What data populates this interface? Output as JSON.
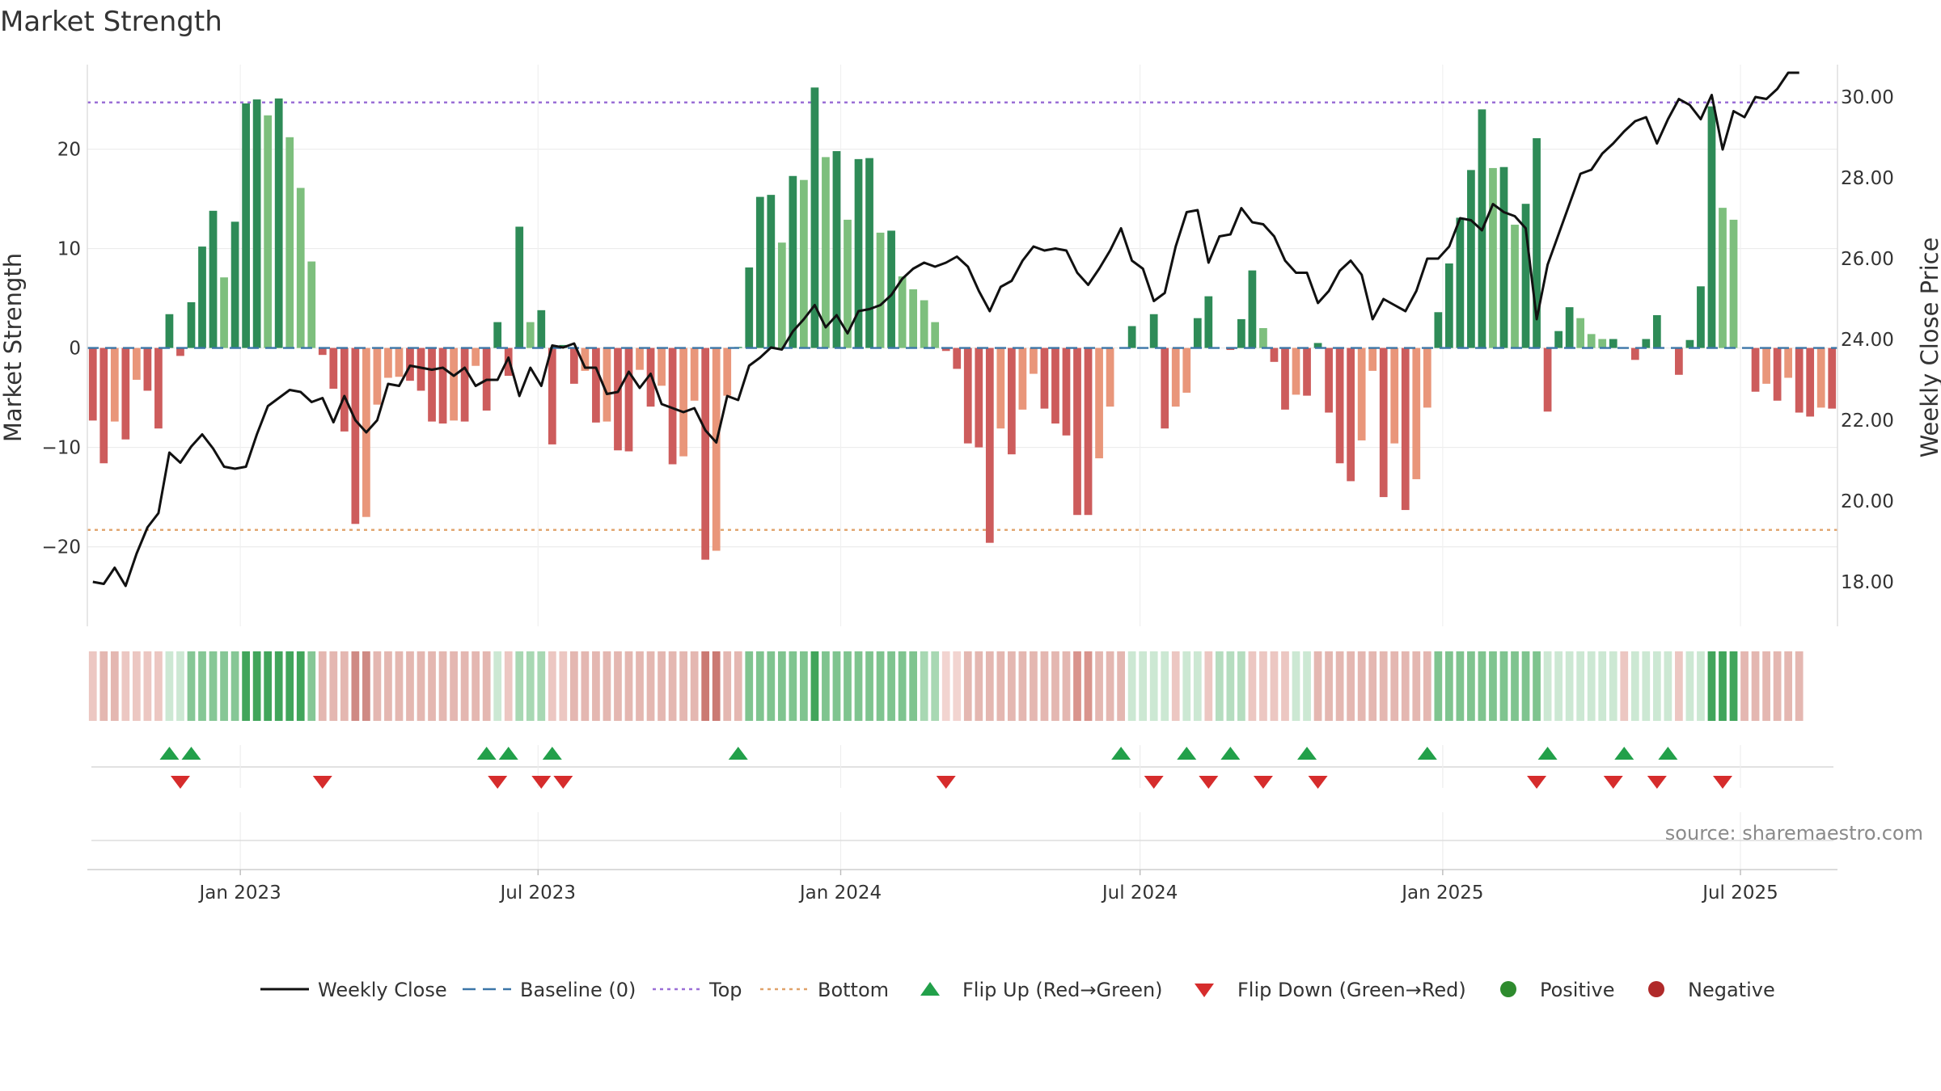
{
  "chart_data": {
    "type": "bar",
    "title": "Market Strength",
    "ylabel": "Market Strength",
    "y2label": "Weekly Close Price",
    "ylim": [
      -28,
      28.5
    ],
    "y2lim": [
      16.9,
      30.8
    ],
    "yticks": [
      "20",
      "10",
      "0",
      "−10",
      "−20"
    ],
    "yticks_values": [
      20,
      10,
      0,
      -10,
      -20
    ],
    "y2ticks": [
      "30.00",
      "28.00",
      "26.00",
      "24.00",
      "22.00",
      "20.00",
      "18.00"
    ],
    "y2ticks_values": [
      30,
      28,
      26,
      24,
      22,
      20,
      18
    ],
    "x_start": "2022-09-30",
    "x_end": "2025-08-29",
    "x_ticks": [
      {
        "date": "2023-01-01",
        "label": "Jan 2023"
      },
      {
        "date": "2023-07-01",
        "label": "Jul 2023"
      },
      {
        "date": "2024-01-01",
        "label": "Jan 2024"
      },
      {
        "date": "2024-07-01",
        "label": "Jul 2024"
      },
      {
        "date": "2025-01-01",
        "label": "Jan 2025"
      },
      {
        "date": "2025-07-01",
        "label": "Jul 2025"
      }
    ],
    "top_line": 24.7,
    "bottom_line": -18.3,
    "strength": [
      -7.3,
      -11.6,
      -7.4,
      -9.2,
      -3.2,
      -4.3,
      -8.1,
      3.4,
      -0.8,
      4.6,
      10.2,
      13.8,
      7.1,
      12.7,
      24.6,
      25.0,
      23.4,
      25.1,
      21.2,
      16.1,
      8.7,
      -0.7,
      -4.1,
      -8.4,
      -17.7,
      -17.0,
      -5.7,
      -3.0,
      -2.9,
      -3.3,
      -4.3,
      -7.4,
      -7.6,
      -7.3,
      -7.4,
      -1.8,
      -6.3,
      2.6,
      -2.8,
      12.2,
      2.6,
      3.8,
      -9.7,
      0.3,
      -3.6,
      -2.3,
      -7.5,
      -7.4,
      -10.3,
      -10.4,
      -2.2,
      -5.9,
      -3.8,
      -11.7,
      -10.9,
      -5.3,
      -21.3,
      -20.4,
      -4.8,
      0.1,
      8.1,
      15.2,
      15.4,
      10.6,
      17.3,
      16.9,
      26.2,
      19.2,
      19.8,
      12.9,
      19.0,
      19.1,
      11.6,
      11.8,
      7.2,
      5.9,
      4.8,
      2.6,
      -0.3,
      -2.1,
      -9.6,
      -10.0,
      -19.6,
      -8.1,
      -10.7,
      -6.2,
      -2.6,
      -6.1,
      -7.6,
      -8.8,
      -16.8,
      -16.8,
      -11.1,
      -5.9,
      0.0,
      2.2,
      0.0,
      3.4,
      -8.1,
      -5.9,
      -4.5,
      3.0,
      5.2,
      0.0,
      -0.2,
      2.9,
      7.8,
      2.0,
      -1.4,
      -6.2,
      -4.7,
      -4.8,
      0.5,
      -6.5,
      -11.6,
      -13.4,
      -9.3,
      -2.3,
      -15.0,
      -9.6,
      -16.3,
      -13.2,
      -6.0,
      3.6,
      8.5,
      13.1,
      17.9,
      24.0,
      18.1,
      18.2,
      12.4,
      14.5,
      21.1,
      -6.4,
      1.7,
      4.1,
      3.0,
      1.4,
      0.9,
      0.9,
      0.0,
      -1.2,
      0.9,
      3.3,
      0.0,
      -2.7,
      0.8,
      6.2,
      24.3,
      14.1,
      12.9,
      0.0,
      -4.4,
      -3.6,
      -5.3,
      -3.0,
      -6.5,
      -6.9,
      -6.0,
      -6.1
    ],
    "weekly_close": [
      18.0,
      17.95,
      18.35,
      17.9,
      18.7,
      19.35,
      19.7,
      21.2,
      20.95,
      21.35,
      21.65,
      21.3,
      20.85,
      20.8,
      20.85,
      21.65,
      22.35,
      22.55,
      22.75,
      22.7,
      22.45,
      22.55,
      21.95,
      22.6,
      22.0,
      21.7,
      22.0,
      22.9,
      22.85,
      23.35,
      23.3,
      23.25,
      23.3,
      23.1,
      23.3,
      22.85,
      23.0,
      23.0,
      23.55,
      22.6,
      23.3,
      22.85,
      23.85,
      23.8,
      23.9,
      23.3,
      23.3,
      22.65,
      22.7,
      23.2,
      22.8,
      23.15,
      22.4,
      22.3,
      22.2,
      22.3,
      21.75,
      21.45,
      22.6,
      22.5,
      23.35,
      23.55,
      23.8,
      23.75,
      24.2,
      24.5,
      24.85,
      24.3,
      24.6,
      24.15,
      24.7,
      24.75,
      24.85,
      25.1,
      25.5,
      25.75,
      25.9,
      25.8,
      25.9,
      26.05,
      25.8,
      25.2,
      24.7,
      25.3,
      25.45,
      25.95,
      26.3,
      26.2,
      26.25,
      26.2,
      25.65,
      25.35,
      25.75,
      26.2,
      26.75,
      25.95,
      25.75,
      24.95,
      25.15,
      26.3,
      27.15,
      27.2,
      25.9,
      26.55,
      26.6,
      27.25,
      26.9,
      26.85,
      26.55,
      25.95,
      25.65,
      25.65,
      24.9,
      25.2,
      25.7,
      25.95,
      25.6,
      24.5,
      25.0,
      24.85,
      24.7,
      25.2,
      26.0,
      26.0,
      26.3,
      27.0,
      26.95,
      26.7,
      27.35,
      27.15,
      27.05,
      26.75,
      24.5,
      25.85,
      26.6,
      27.35,
      28.1,
      28.2,
      28.6,
      28.85,
      29.15,
      29.4,
      29.5,
      28.85,
      29.45,
      29.95,
      29.8,
      29.45,
      30.05,
      28.7,
      29.65,
      29.5,
      30.0,
      29.95,
      30.2,
      30.6,
      30.6
    ],
    "status_row": [
      {
        "from": 0,
        "to": 1,
        "color": "#ecc7c2"
      },
      {
        "from": 1,
        "to": 3,
        "color": "#e4b7b1"
      },
      {
        "from": 3,
        "to": 7,
        "color": "#ecc7c2"
      },
      {
        "from": 7,
        "to": 9,
        "color": "#cce8d3"
      },
      {
        "from": 9,
        "to": 14,
        "color": "#86c796"
      },
      {
        "from": 14,
        "to": 20,
        "color": "#41a55b"
      },
      {
        "from": 20,
        "to": 21,
        "color": "#86c796"
      },
      {
        "from": 21,
        "to": 24,
        "color": "#e4b7b1"
      },
      {
        "from": 24,
        "to": 26,
        "color": "#cf8a84"
      },
      {
        "from": 26,
        "to": 37,
        "color": "#e4b7b1"
      },
      {
        "from": 37,
        "to": 38,
        "color": "#cce8d3"
      },
      {
        "from": 38,
        "to": 39,
        "color": "#ecc7c2"
      },
      {
        "from": 39,
        "to": 42,
        "color": "#a8d8b3"
      },
      {
        "from": 42,
        "to": 44,
        "color": "#ecc7c2"
      },
      {
        "from": 44,
        "to": 56,
        "color": "#e4b7b1"
      },
      {
        "from": 56,
        "to": 58,
        "color": "#cb7a73"
      },
      {
        "from": 58,
        "to": 60,
        "color": "#e4b7b1"
      },
      {
        "from": 60,
        "to": 66,
        "color": "#7fc48f"
      },
      {
        "from": 66,
        "to": 67,
        "color": "#41a55b"
      },
      {
        "from": 67,
        "to": 76,
        "color": "#7fc48f"
      },
      {
        "from": 76,
        "to": 78,
        "color": "#a8d8b3"
      },
      {
        "from": 78,
        "to": 80,
        "color": "#f2d4d0"
      },
      {
        "from": 80,
        "to": 90,
        "color": "#e4b7b1"
      },
      {
        "from": 90,
        "to": 92,
        "color": "#d9948d"
      },
      {
        "from": 92,
        "to": 95,
        "color": "#e4b7b1"
      },
      {
        "from": 95,
        "to": 99,
        "color": "#cce8d3"
      },
      {
        "from": 99,
        "to": 100,
        "color": "#ecc7c2"
      },
      {
        "from": 100,
        "to": 102,
        "color": "#cce8d3"
      },
      {
        "from": 102,
        "to": 103,
        "color": "#ecc7c2"
      },
      {
        "from": 103,
        "to": 106,
        "color": "#b5ddbf"
      },
      {
        "from": 106,
        "to": 110,
        "color": "#ecc7c2"
      },
      {
        "from": 110,
        "to": 112,
        "color": "#cce8d3"
      },
      {
        "from": 112,
        "to": 123,
        "color": "#e4b7b1"
      },
      {
        "from": 123,
        "to": 133,
        "color": "#7fc48f"
      },
      {
        "from": 133,
        "to": 140,
        "color": "#cce8d3"
      },
      {
        "from": 140,
        "to": 141,
        "color": "#ecc7c2"
      },
      {
        "from": 141,
        "to": 145,
        "color": "#cce8d3"
      },
      {
        "from": 145,
        "to": 146,
        "color": "#ecc7c2"
      },
      {
        "from": 146,
        "to": 148,
        "color": "#cce8d3"
      },
      {
        "from": 148,
        "to": 151,
        "color": "#41a55b"
      },
      {
        "from": 151,
        "to": 157,
        "color": "#e4b7b1"
      }
    ],
    "flip_up_weeks": [
      7,
      9,
      36,
      38,
      42,
      59,
      94,
      100,
      104,
      111,
      122,
      133,
      140,
      144
    ],
    "flip_down_weeks": [
      8,
      21,
      37,
      41,
      43,
      78,
      97,
      102,
      107,
      112,
      132,
      139,
      143,
      149
    ],
    "legend": [
      {
        "label": "Weekly Close",
        "type": "line",
        "color": "#111111"
      },
      {
        "label": "Baseline (0)",
        "type": "dashed",
        "color": "#3b76a8"
      },
      {
        "label": "Top",
        "type": "dotted",
        "color": "#9b6fd6"
      },
      {
        "label": "Bottom",
        "type": "dotted",
        "color": "#e0a26a"
      },
      {
        "label": "Flip Up (Red→Green)",
        "type": "triangle-up",
        "color": "#22a04a"
      },
      {
        "label": "Flip Down (Green→Red)",
        "type": "triangle-down",
        "color": "#d62c2c"
      },
      {
        "label": "Positive",
        "type": "dot",
        "color": "#2e8b2e"
      },
      {
        "label": "Negative",
        "type": "dot",
        "color": "#b02a2a"
      }
    ],
    "colors": {
      "pos_strong": "#2e8b57",
      "pos_weak": "#7dbf7d",
      "neg_strong": "#cd5c5c",
      "neg_weak": "#e9967a",
      "close_line": "#111111",
      "baseline": "#3b76a8",
      "top": "#9b6fd6",
      "bottom": "#e0a26a",
      "flip_up": "#22a04a",
      "flip_down": "#d62c2c"
    },
    "source": "source: sharemaestro.com"
  }
}
